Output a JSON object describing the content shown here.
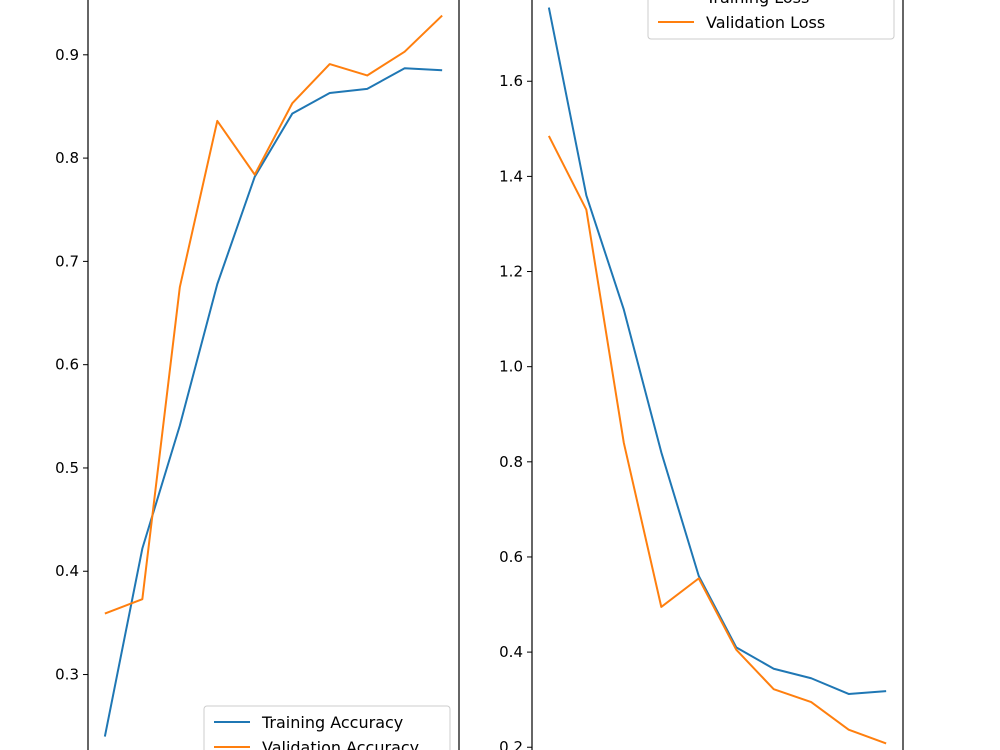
{
  "chart_data": [
    {
      "type": "line",
      "x": [
        0,
        1,
        2,
        3,
        4,
        5,
        6,
        7,
        8,
        9
      ],
      "series": [
        {
          "name": "Training Accuracy",
          "color": "#1f77b4",
          "values": [
            0.24,
            0.422,
            0.541,
            0.678,
            0.782,
            0.843,
            0.863,
            0.867,
            0.887,
            0.885
          ]
        },
        {
          "name": "Validation Accuracy",
          "color": "#ff7f0e",
          "values": [
            0.359,
            0.373,
            0.675,
            0.836,
            0.784,
            0.853,
            0.891,
            0.88,
            0.903,
            0.938
          ]
        }
      ],
      "yticks": [
        0.3,
        0.4,
        0.5,
        0.6,
        0.7,
        0.8,
        0.9
      ],
      "ytick_labels": [
        "0.3",
        "0.4",
        "0.5",
        "0.6",
        "0.7",
        "0.8",
        "0.9"
      ],
      "xlim": [
        -0.45,
        9.45
      ],
      "ylim": [
        0.225,
        0.955
      ],
      "legend": "lower-right",
      "grid": false
    },
    {
      "type": "line",
      "x": [
        0,
        1,
        2,
        3,
        4,
        5,
        6,
        7,
        8,
        9
      ],
      "series": [
        {
          "name": "Training Loss",
          "color": "#1f77b4",
          "values": [
            1.755,
            1.36,
            1.12,
            0.82,
            0.56,
            0.41,
            0.365,
            0.345,
            0.312,
            0.318
          ]
        },
        {
          "name": "Validation Loss",
          "color": "#ff7f0e",
          "values": [
            1.485,
            1.33,
            0.84,
            0.495,
            0.555,
            0.405,
            0.322,
            0.295,
            0.237,
            0.208
          ]
        }
      ],
      "yticks": [
        0.2,
        0.4,
        0.6,
        0.8,
        1.0,
        1.2,
        1.4,
        1.6
      ],
      "ytick_labels": [
        "0.2",
        "0.4",
        "0.6",
        "0.8",
        "1.0",
        "1.2",
        "1.4",
        "1.6"
      ],
      "xlim": [
        -0.45,
        9.45
      ],
      "ylim": [
        0.19,
        1.775
      ],
      "legend": "upper-right",
      "grid": false
    }
  ]
}
